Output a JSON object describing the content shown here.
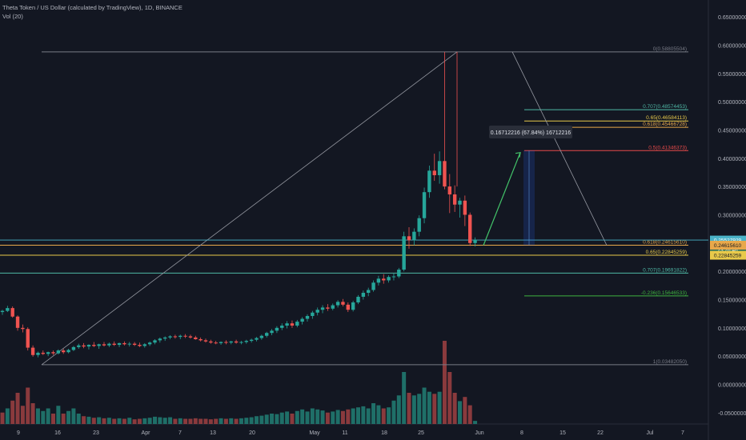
{
  "header": {
    "title": "Theta Token / US Dollar (calculated by TradingView), 1D, BINANCE",
    "indicator": "Vol (20)"
  },
  "colors": {
    "background": "#131722",
    "up": "#26a69a",
    "down": "#ef5350",
    "volume_up": "#1f6f68",
    "volume_down": "#8a3a3d",
    "fib_gray": "#787b86",
    "fib_yellow": "#e8c94a",
    "fib_red": "#e84a4a",
    "fib_teal": "#4fb8a6",
    "fib_green": "#3fb33f",
    "current_price": "#4ab3c8",
    "axis_text": "#b2b5be",
    "arrow": "#43c46a"
  },
  "chart_data": {
    "type": "candlestick",
    "ylim": [
      -0.07,
      0.66
    ],
    "y_ticks": [
      "0.65000000",
      "0.60000000",
      "0.55000000",
      "0.50000000",
      "0.45000000",
      "0.40000000",
      "0.35000000",
      "0.30000000",
      "0.25000000",
      "0.20000000",
      "0.15000000",
      "0.10000000",
      "0.05000000",
      "0.00000000",
      "-0.05000000"
    ],
    "x_tick_labels": [
      "9",
      "16",
      "23",
      "Apr",
      "7",
      "13",
      "20",
      "May",
      "11",
      "18",
      "25",
      "Jun",
      "8",
      "15",
      "22",
      "Jul",
      "7"
    ],
    "candles": [
      [
        0.128,
        0.132,
        0.123,
        0.13
      ],
      [
        0.13,
        0.139,
        0.128,
        0.135
      ],
      [
        0.135,
        0.138,
        0.118,
        0.12
      ],
      [
        0.12,
        0.122,
        0.095,
        0.1
      ],
      [
        0.1,
        0.106,
        0.092,
        0.098
      ],
      [
        0.098,
        0.101,
        0.06,
        0.065
      ],
      [
        0.065,
        0.069,
        0.049,
        0.052
      ],
      [
        0.052,
        0.058,
        0.048,
        0.056
      ],
      [
        0.056,
        0.06,
        0.052,
        0.054
      ],
      [
        0.054,
        0.058,
        0.05,
        0.057
      ],
      [
        0.057,
        0.06,
        0.052,
        0.055
      ],
      [
        0.055,
        0.062,
        0.053,
        0.06
      ],
      [
        0.06,
        0.063,
        0.054,
        0.057
      ],
      [
        0.057,
        0.063,
        0.055,
        0.061
      ],
      [
        0.061,
        0.068,
        0.059,
        0.066
      ],
      [
        0.066,
        0.072,
        0.063,
        0.069
      ],
      [
        0.069,
        0.073,
        0.064,
        0.067
      ],
      [
        0.067,
        0.071,
        0.062,
        0.07
      ],
      [
        0.07,
        0.075,
        0.066,
        0.068
      ],
      [
        0.068,
        0.072,
        0.063,
        0.071
      ],
      [
        0.071,
        0.075,
        0.067,
        0.069
      ],
      [
        0.069,
        0.074,
        0.066,
        0.072
      ],
      [
        0.072,
        0.076,
        0.068,
        0.07
      ],
      [
        0.07,
        0.074,
        0.066,
        0.073
      ],
      [
        0.073,
        0.076,
        0.069,
        0.071
      ],
      [
        0.071,
        0.075,
        0.067,
        0.072
      ],
      [
        0.072,
        0.075,
        0.068,
        0.07
      ],
      [
        0.07,
        0.074,
        0.066,
        0.068
      ],
      [
        0.068,
        0.073,
        0.065,
        0.071
      ],
      [
        0.071,
        0.076,
        0.068,
        0.074
      ],
      [
        0.074,
        0.08,
        0.071,
        0.078
      ],
      [
        0.078,
        0.083,
        0.074,
        0.081
      ],
      [
        0.081,
        0.085,
        0.077,
        0.083
      ],
      [
        0.083,
        0.087,
        0.08,
        0.085
      ],
      [
        0.085,
        0.088,
        0.081,
        0.084
      ],
      [
        0.084,
        0.088,
        0.08,
        0.086
      ],
      [
        0.086,
        0.089,
        0.082,
        0.085
      ],
      [
        0.085,
        0.088,
        0.081,
        0.083
      ],
      [
        0.083,
        0.086,
        0.079,
        0.08
      ],
      [
        0.08,
        0.083,
        0.076,
        0.078
      ],
      [
        0.078,
        0.081,
        0.074,
        0.076
      ],
      [
        0.076,
        0.079,
        0.072,
        0.074
      ],
      [
        0.074,
        0.077,
        0.071,
        0.073
      ],
      [
        0.073,
        0.076,
        0.07,
        0.075
      ],
      [
        0.075,
        0.078,
        0.071,
        0.074
      ],
      [
        0.074,
        0.077,
        0.071,
        0.076
      ],
      [
        0.076,
        0.079,
        0.072,
        0.074
      ],
      [
        0.074,
        0.077,
        0.071,
        0.075
      ],
      [
        0.075,
        0.079,
        0.072,
        0.077
      ],
      [
        0.077,
        0.081,
        0.074,
        0.079
      ],
      [
        0.079,
        0.084,
        0.076,
        0.082
      ],
      [
        0.082,
        0.088,
        0.079,
        0.086
      ],
      [
        0.086,
        0.093,
        0.083,
        0.091
      ],
      [
        0.091,
        0.098,
        0.087,
        0.095
      ],
      [
        0.095,
        0.103,
        0.091,
        0.1
      ],
      [
        0.1,
        0.108,
        0.096,
        0.104
      ],
      [
        0.104,
        0.112,
        0.099,
        0.108
      ],
      [
        0.108,
        0.113,
        0.1,
        0.104
      ],
      [
        0.104,
        0.114,
        0.101,
        0.111
      ],
      [
        0.111,
        0.119,
        0.106,
        0.116
      ],
      [
        0.116,
        0.124,
        0.111,
        0.121
      ],
      [
        0.121,
        0.13,
        0.116,
        0.127
      ],
      [
        0.127,
        0.136,
        0.122,
        0.132
      ],
      [
        0.132,
        0.14,
        0.126,
        0.136
      ],
      [
        0.136,
        0.142,
        0.13,
        0.134
      ],
      [
        0.134,
        0.143,
        0.131,
        0.14
      ],
      [
        0.14,
        0.149,
        0.136,
        0.146
      ],
      [
        0.146,
        0.151,
        0.138,
        0.141
      ],
      [
        0.141,
        0.145,
        0.128,
        0.132
      ],
      [
        0.132,
        0.148,
        0.129,
        0.145
      ],
      [
        0.145,
        0.158,
        0.142,
        0.155
      ],
      [
        0.155,
        0.166,
        0.15,
        0.162
      ],
      [
        0.162,
        0.171,
        0.156,
        0.167
      ],
      [
        0.167,
        0.184,
        0.164,
        0.18
      ],
      [
        0.18,
        0.192,
        0.175,
        0.187
      ],
      [
        0.187,
        0.195,
        0.178,
        0.184
      ],
      [
        0.184,
        0.193,
        0.18,
        0.19
      ],
      [
        0.19,
        0.196,
        0.184,
        0.191
      ],
      [
        0.191,
        0.206,
        0.188,
        0.203
      ],
      [
        0.203,
        0.27,
        0.2,
        0.262
      ],
      [
        0.262,
        0.278,
        0.24,
        0.255
      ],
      [
        0.255,
        0.276,
        0.246,
        0.27
      ],
      [
        0.27,
        0.299,
        0.262,
        0.294
      ],
      [
        0.294,
        0.348,
        0.285,
        0.34
      ],
      [
        0.34,
        0.387,
        0.33,
        0.378
      ],
      [
        0.378,
        0.408,
        0.36,
        0.37
      ],
      [
        0.37,
        0.412,
        0.355,
        0.395
      ],
      [
        0.395,
        0.588,
        0.345,
        0.35
      ],
      [
        0.35,
        0.372,
        0.303,
        0.336
      ],
      [
        0.336,
        0.352,
        0.305,
        0.318
      ],
      [
        0.318,
        0.33,
        0.295,
        0.325
      ],
      [
        0.325,
        0.334,
        0.28,
        0.3
      ],
      [
        0.3,
        0.304,
        0.245,
        0.25
      ],
      [
        0.25,
        0.26,
        0.244,
        0.256
      ]
    ],
    "volume": [
      [
        0.22,
        "d"
      ],
      [
        0.3,
        "u"
      ],
      [
        0.45,
        "d"
      ],
      [
        0.6,
        "d"
      ],
      [
        0.35,
        "d"
      ],
      [
        0.7,
        "d"
      ],
      [
        0.4,
        "d"
      ],
      [
        0.3,
        "u"
      ],
      [
        0.25,
        "u"
      ],
      [
        0.3,
        "u"
      ],
      [
        0.2,
        "d"
      ],
      [
        0.35,
        "u"
      ],
      [
        0.2,
        "d"
      ],
      [
        0.25,
        "u"
      ],
      [
        0.3,
        "u"
      ],
      [
        0.2,
        "u"
      ],
      [
        0.15,
        "d"
      ],
      [
        0.14,
        "u"
      ],
      [
        0.12,
        "d"
      ],
      [
        0.13,
        "u"
      ],
      [
        0.11,
        "d"
      ],
      [
        0.12,
        "u"
      ],
      [
        0.1,
        "d"
      ],
      [
        0.11,
        "u"
      ],
      [
        0.1,
        "d"
      ],
      [
        0.12,
        "u"
      ],
      [
        0.09,
        "d"
      ],
      [
        0.1,
        "d"
      ],
      [
        0.11,
        "u"
      ],
      [
        0.12,
        "u"
      ],
      [
        0.14,
        "u"
      ],
      [
        0.13,
        "u"
      ],
      [
        0.12,
        "u"
      ],
      [
        0.13,
        "u"
      ],
      [
        0.1,
        "d"
      ],
      [
        0.11,
        "u"
      ],
      [
        0.1,
        "d"
      ],
      [
        0.1,
        "d"
      ],
      [
        0.11,
        "d"
      ],
      [
        0.1,
        "d"
      ],
      [
        0.1,
        "d"
      ],
      [
        0.09,
        "d"
      ],
      [
        0.1,
        "d"
      ],
      [
        0.11,
        "u"
      ],
      [
        0.1,
        "d"
      ],
      [
        0.11,
        "u"
      ],
      [
        0.1,
        "d"
      ],
      [
        0.11,
        "u"
      ],
      [
        0.12,
        "u"
      ],
      [
        0.13,
        "u"
      ],
      [
        0.15,
        "u"
      ],
      [
        0.16,
        "u"
      ],
      [
        0.18,
        "u"
      ],
      [
        0.2,
        "u"
      ],
      [
        0.19,
        "u"
      ],
      [
        0.22,
        "u"
      ],
      [
        0.24,
        "u"
      ],
      [
        0.2,
        "d"
      ],
      [
        0.25,
        "u"
      ],
      [
        0.28,
        "u"
      ],
      [
        0.24,
        "u"
      ],
      [
        0.3,
        "u"
      ],
      [
        0.28,
        "u"
      ],
      [
        0.26,
        "u"
      ],
      [
        0.22,
        "d"
      ],
      [
        0.24,
        "u"
      ],
      [
        0.27,
        "u"
      ],
      [
        0.25,
        "d"
      ],
      [
        0.28,
        "d"
      ],
      [
        0.3,
        "u"
      ],
      [
        0.32,
        "u"
      ],
      [
        0.34,
        "u"
      ],
      [
        0.3,
        "u"
      ],
      [
        0.4,
        "u"
      ],
      [
        0.36,
        "u"
      ],
      [
        0.3,
        "d"
      ],
      [
        0.32,
        "u"
      ],
      [
        0.45,
        "u"
      ],
      [
        0.55,
        "u"
      ],
      [
        1.0,
        "u"
      ],
      [
        0.6,
        "d"
      ],
      [
        0.55,
        "u"
      ],
      [
        0.58,
        "u"
      ],
      [
        0.7,
        "u"
      ],
      [
        0.62,
        "u"
      ],
      [
        0.58,
        "d"
      ],
      [
        0.62,
        "u"
      ],
      [
        1.6,
        "d"
      ],
      [
        1.0,
        "d"
      ],
      [
        0.6,
        "d"
      ],
      [
        0.44,
        "u"
      ],
      [
        0.52,
        "d"
      ],
      [
        0.36,
        "d"
      ],
      [
        0.06,
        "u"
      ]
    ],
    "fib_levels": [
      {
        "label": "0(0.58805504)",
        "value": 0.58805504,
        "color": "#787b86",
        "x1": 52,
        "x2": 860
      },
      {
        "label": "0.707(0.48574453)",
        "value": 0.48574453,
        "color": "#4fb8a6",
        "x1": 655,
        "x2": 860
      },
      {
        "label": "0.65(0.46584113)",
        "value": 0.46584113,
        "color": "#e8c94a",
        "x1": 655,
        "x2": 860
      },
      {
        "label": "0.618(0.45466728)",
        "value": 0.45466728,
        "color": "#e8a84a",
        "x1": 655,
        "x2": 860
      },
      {
        "label": "0.5(0.41346373)",
        "value": 0.41346373,
        "color": "#e84a4a",
        "x1": 655,
        "x2": 860
      },
      {
        "label": "0.618(0.24615610)",
        "value": 0.2461561,
        "color": "#e8a84a",
        "x1": 0,
        "x2": 860
      },
      {
        "label": "0.65(0.22845259)",
        "value": 0.22845259,
        "color": "#e8c94a",
        "x1": 0,
        "x2": 860
      },
      {
        "label": "0.707(0.19691822)",
        "value": 0.19691822,
        "color": "#4fb8a6",
        "x1": 0,
        "x2": 860
      },
      {
        "label": "-0.236(0.15646533)",
        "value": 0.15646533,
        "color": "#3fb33f",
        "x1": 655,
        "x2": 860
      },
      {
        "label": "1(0.03482050)",
        "value": 0.0348205,
        "color": "#787b86",
        "x1": 52,
        "x2": 860
      }
    ],
    "current_price": {
      "value": 0.25527929,
      "label": "0.25527929",
      "countdown": "23:26:46"
    },
    "measure": {
      "label": "0.16712216 (67.84%) 16712216",
      "from": 0.2461561,
      "to": 0.41346373
    }
  }
}
